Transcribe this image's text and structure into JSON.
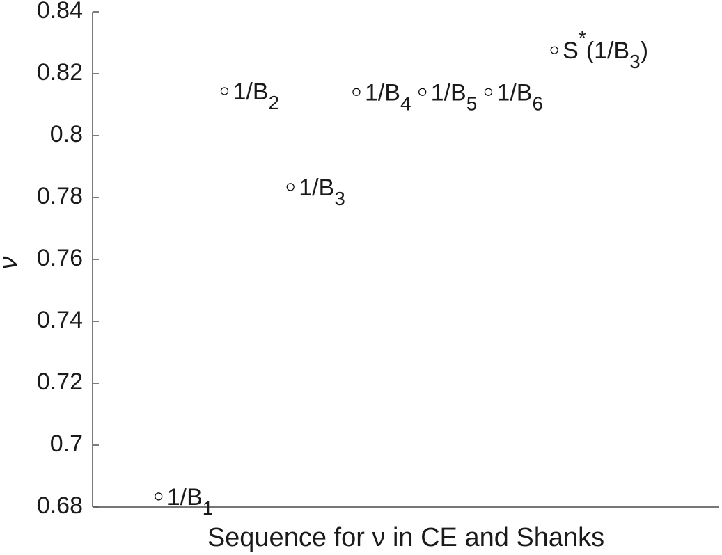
{
  "chart_data": {
    "type": "scatter",
    "xlabel": "Sequence for ν in CE and Shanks",
    "ylabel": "ν",
    "x": [
      1,
      2,
      3,
      4,
      5,
      6,
      7
    ],
    "values": [
      0.6834,
      0.8144,
      0.7834,
      0.8141,
      0.8141,
      0.8141,
      0.8276
    ],
    "point_labels": [
      [
        {
          "t": "1/B"
        },
        {
          "t": "1",
          "s": "sub"
        }
      ],
      [
        {
          "t": "1/B"
        },
        {
          "t": "2",
          "s": "sub"
        }
      ],
      [
        {
          "t": "1/B"
        },
        {
          "t": "3",
          "s": "sub"
        }
      ],
      [
        {
          "t": "1/B"
        },
        {
          "t": "4",
          "s": "sub"
        }
      ],
      [
        {
          "t": "1/B"
        },
        {
          "t": "5",
          "s": "sub"
        }
      ],
      [
        {
          "t": "1/B"
        },
        {
          "t": "6",
          "s": "sub"
        }
      ],
      [
        {
          "t": "S"
        },
        {
          "t": "*",
          "s": "sup"
        },
        {
          "t": "(1/B"
        },
        {
          "t": "3",
          "s": "sub"
        },
        {
          "t": ")"
        }
      ]
    ],
    "color": "#000000",
    "xlim": [
      0,
      9.5
    ],
    "ylim": [
      0.68,
      0.84
    ],
    "yticks": [
      0.68,
      0.7,
      0.72,
      0.74,
      0.76,
      0.78,
      0.8,
      0.82,
      0.84
    ]
  }
}
